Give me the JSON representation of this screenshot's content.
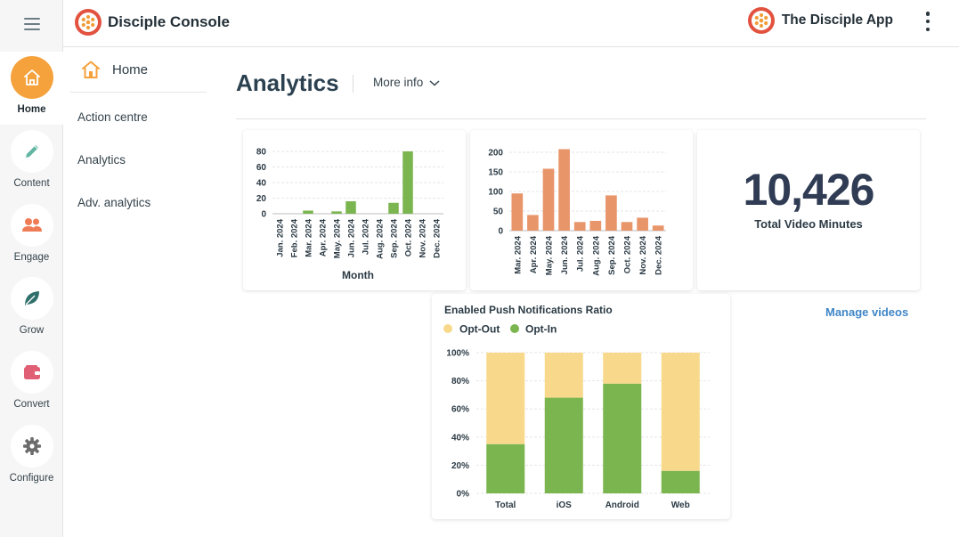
{
  "header": {
    "console_title": "Disciple Console",
    "app_title": "The Disciple App"
  },
  "rail": {
    "items": [
      {
        "label": "Home",
        "icon": "home-icon",
        "active": true
      },
      {
        "label": "Content",
        "icon": "pencil-icon"
      },
      {
        "label": "Engage",
        "icon": "people-icon"
      },
      {
        "label": "Grow",
        "icon": "leaf-icon"
      },
      {
        "label": "Convert",
        "icon": "wallet-icon"
      },
      {
        "label": "Configure",
        "icon": "gear-icon"
      }
    ]
  },
  "subnav": {
    "home": "Home",
    "items": [
      "Action centre",
      "Analytics",
      "Adv. analytics"
    ]
  },
  "page": {
    "title": "Analytics",
    "more_info": "More info",
    "manage_videos": "Manage videos"
  },
  "stat": {
    "value": "10,426",
    "caption": "Total Video Minutes"
  },
  "colors": {
    "accent": "#f5a23c",
    "green": "#7ab54f",
    "orange": "#e8956a",
    "opt_out": "#f8d98c",
    "link": "#3f86c7"
  },
  "chart_data": [
    {
      "type": "bar",
      "categories": [
        "Jan. 2024",
        "Feb. 2024",
        "Mar. 2024",
        "Apr. 2024",
        "May. 2024",
        "Jun. 2024",
        "Jul. 2024",
        "Aug. 2024",
        "Sep. 2024",
        "Oct. 2024",
        "Nov. 2024",
        "Dec. 2024"
      ],
      "values": [
        0,
        0,
        4,
        0,
        3,
        16,
        0,
        0,
        14,
        80,
        0,
        0
      ],
      "xlabel": "Month",
      "ylabel": "",
      "ylim": [
        0,
        80
      ],
      "yticks": [
        0,
        20,
        40,
        60,
        80
      ],
      "grid": true,
      "color": "#7ab54f"
    },
    {
      "type": "bar",
      "categories": [
        "Mar. 2024",
        "Apr. 2024",
        "May. 2024",
        "Jun. 2024",
        "Jul. 2024",
        "Aug. 2024",
        "Sep. 2024",
        "Oct. 2024",
        "Nov. 2024",
        "Dec. 2024"
      ],
      "values": [
        95,
        40,
        158,
        208,
        22,
        25,
        90,
        22,
        33,
        13
      ],
      "xlabel": "",
      "ylabel": "",
      "ylim": [
        0,
        200
      ],
      "yticks": [
        0,
        50,
        100,
        150,
        200
      ],
      "grid": true,
      "color": "#e8956a"
    },
    {
      "type": "bar",
      "stacked": true,
      "title": "Enabled Push Notifications Ratio",
      "categories": [
        "Total",
        "iOS",
        "Android",
        "Web"
      ],
      "series": [
        {
          "name": "Opt-Out",
          "values": [
            65,
            32,
            22,
            84
          ],
          "color": "#f8d98c"
        },
        {
          "name": "Opt-In",
          "values": [
            35,
            68,
            78,
            16
          ],
          "color": "#7ab54f"
        }
      ],
      "yticks": [
        "0%",
        "20%",
        "40%",
        "60%",
        "80%",
        "100%"
      ],
      "ylim": [
        0,
        100
      ],
      "legend": "top-left",
      "grid": true
    }
  ]
}
